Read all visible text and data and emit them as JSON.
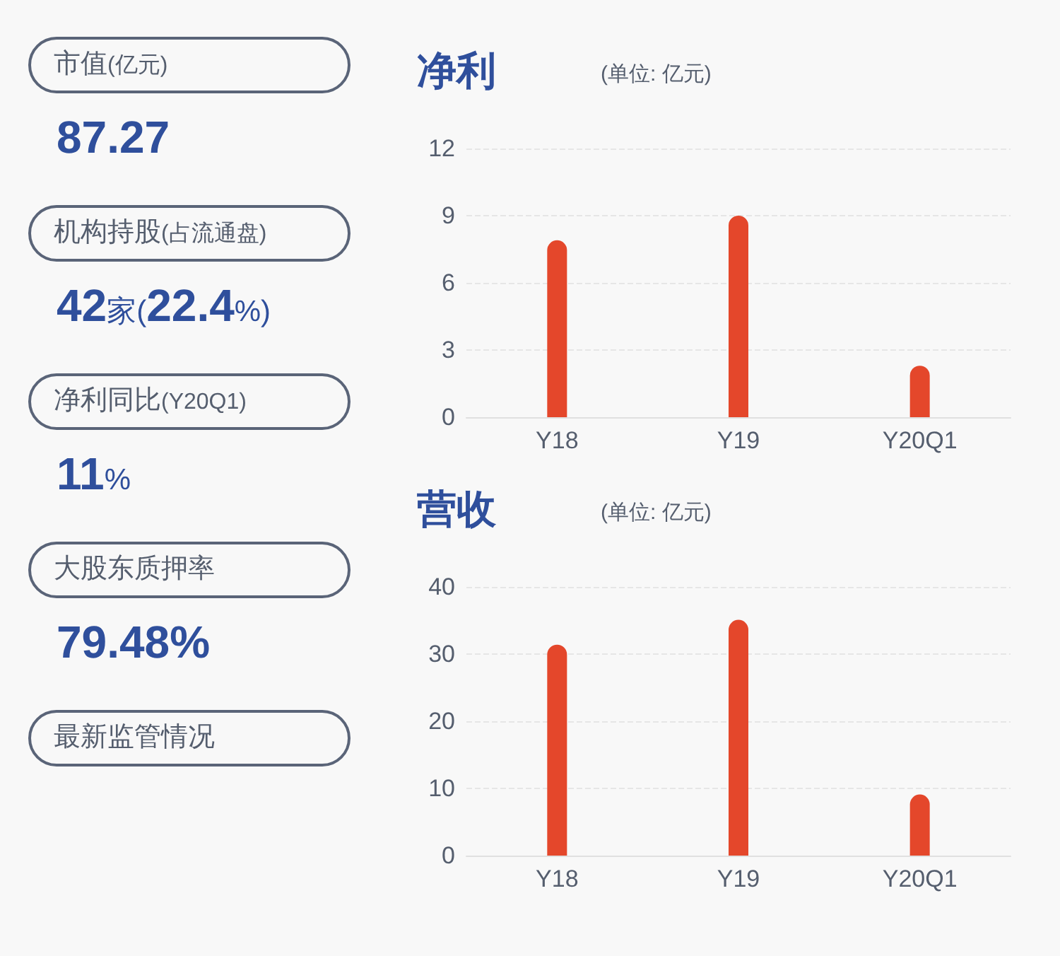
{
  "chart_data": [
    {
      "type": "other",
      "annotations": [
        "市值(亿元)",
        "87.27",
        "机构持股(占流通盘)",
        "42家(22.4%)",
        "净利同比(Y20Q1)",
        "11%",
        "大股东质押率",
        "79.48%",
        "最新监管情况"
      ]
    },
    {
      "type": "bar",
      "title": "净利",
      "subtitle": "(单位: 亿元)",
      "categories": [
        "Y18",
        "Y19",
        "Y20Q1"
      ],
      "values": [
        7.9,
        9.0,
        2.3
      ],
      "color": "#e4472b",
      "ylim": [
        0,
        12
      ],
      "yticks": [
        0,
        3,
        6,
        9,
        12
      ],
      "grid": "y"
    },
    {
      "type": "bar",
      "title": "营收",
      "subtitle": "(单位: 亿元)",
      "categories": [
        "Y18",
        "Y19",
        "Y20Q1"
      ],
      "values": [
        31.4,
        35.1,
        9.1
      ],
      "color": "#e4472b",
      "ylim": [
        0,
        40
      ],
      "yticks": [
        0,
        10,
        20,
        30,
        40
      ],
      "grid": "y"
    }
  ]
}
